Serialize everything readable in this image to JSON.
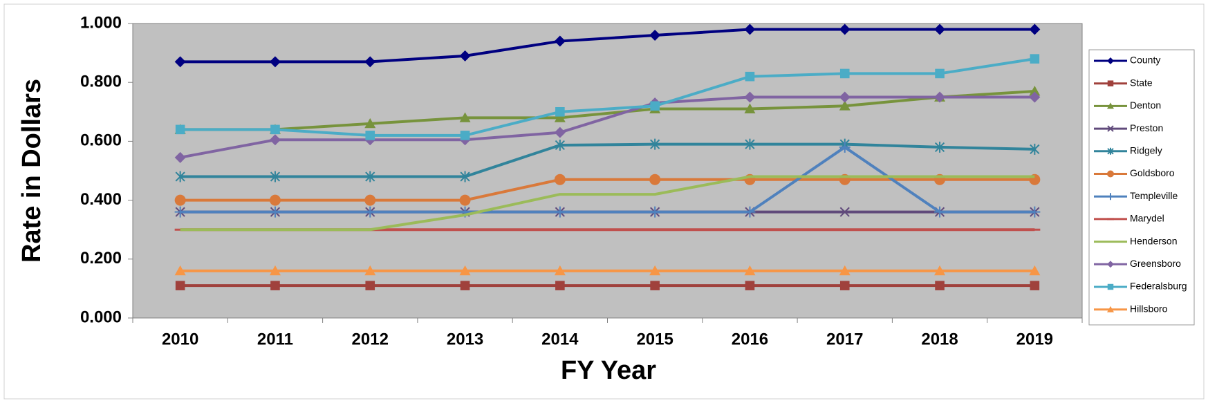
{
  "chart_data": {
    "type": "line",
    "y_label": "Rate in Dollars",
    "x_label": "FY Year",
    "categories": [
      "2010",
      "2011",
      "2012",
      "2013",
      "2014",
      "2015",
      "2016",
      "2017",
      "2018",
      "2019"
    ],
    "ylim": [
      0,
      1
    ],
    "yticks": [
      {
        "value": 0,
        "label": "0.000"
      },
      {
        "value": 0.2,
        "label": "0.200"
      },
      {
        "value": 0.4,
        "label": "0.400"
      },
      {
        "value": 0.6,
        "label": "0.600"
      },
      {
        "value": 0.8,
        "label": "0.800"
      },
      {
        "value": 1,
        "label": "1.000"
      }
    ],
    "legend": "right",
    "series": [
      {
        "name": "County",
        "color": "#000080",
        "marker": "diamond",
        "values": [
          0.87,
          0.87,
          0.87,
          0.89,
          0.94,
          0.96,
          0.98,
          0.98,
          0.98,
          0.98
        ]
      },
      {
        "name": "State",
        "color": "#a0413c",
        "marker": "square",
        "values": [
          0.11,
          0.11,
          0.11,
          0.11,
          0.11,
          0.11,
          0.11,
          0.11,
          0.11,
          0.11
        ]
      },
      {
        "name": "Denton",
        "color": "#77933c",
        "marker": "triangle",
        "values": [
          0.64,
          0.64,
          0.66,
          0.68,
          0.68,
          0.71,
          0.71,
          0.72,
          0.75,
          0.77
        ]
      },
      {
        "name": "Preston",
        "color": "#604a7b",
        "marker": "x",
        "values": [
          0.36,
          0.36,
          0.36,
          0.36,
          0.36,
          0.36,
          0.36,
          0.36,
          0.36,
          0.36
        ]
      },
      {
        "name": "Ridgely",
        "color": "#31849b",
        "marker": "star",
        "values": [
          0.48,
          0.48,
          0.48,
          0.48,
          0.587,
          0.59,
          0.59,
          0.59,
          0.58,
          0.573
        ]
      },
      {
        "name": "Goldsboro",
        "color": "#d9793a",
        "marker": "circle",
        "values": [
          0.4,
          0.4,
          0.4,
          0.4,
          0.47,
          0.47,
          0.47,
          0.47,
          0.47,
          0.47
        ]
      },
      {
        "name": "Templeville",
        "color": "#4f81bd",
        "marker": "plus",
        "values": [
          0.36,
          0.36,
          0.36,
          0.36,
          0.36,
          0.36,
          0.36,
          0.58,
          0.36,
          0.36
        ]
      },
      {
        "name": "Marydel",
        "color": "#c0504d",
        "marker": "dash",
        "values": [
          0.3,
          0.3,
          0.3,
          0.3,
          0.3,
          0.3,
          0.3,
          0.3,
          0.3,
          0.3
        ]
      },
      {
        "name": "Henderson",
        "color": "#9bbb59",
        "marker": "none",
        "values": [
          0.3,
          0.3,
          0.3,
          0.35,
          0.42,
          0.42,
          0.48,
          0.48,
          0.48,
          0.48
        ]
      },
      {
        "name": "Greensboro",
        "color": "#8064a2",
        "marker": "diamond",
        "values": [
          0.545,
          0.605,
          0.605,
          0.605,
          0.63,
          0.73,
          0.75,
          0.75,
          0.75,
          0.75
        ]
      },
      {
        "name": "Federalsburg",
        "color": "#4bacc6",
        "marker": "square",
        "values": [
          0.64,
          0.64,
          0.62,
          0.62,
          0.7,
          0.72,
          0.82,
          0.83,
          0.83,
          0.88
        ]
      },
      {
        "name": "Hillsboro",
        "color": "#f79646",
        "marker": "triangle",
        "values": [
          0.16,
          0.16,
          0.16,
          0.16,
          0.16,
          0.16,
          0.16,
          0.16,
          0.16,
          0.16
        ]
      }
    ]
  }
}
